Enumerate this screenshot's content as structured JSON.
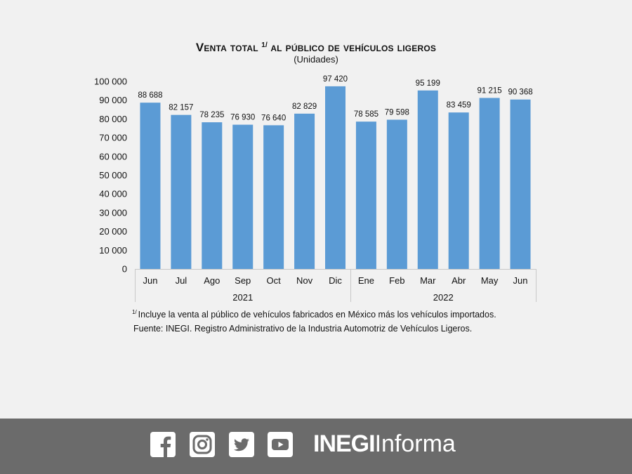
{
  "chart_data": {
    "type": "bar",
    "title_prefix": "Venta total",
    "title_sup": "1/",
    "title_suffix": "al público de vehículos ligeros",
    "subtitle": "(Unidades)",
    "categories": [
      "Jun",
      "Jul",
      "Ago",
      "Sep",
      "Oct",
      "Nov",
      "Dic",
      "Ene",
      "Feb",
      "Mar",
      "Abr",
      "May",
      "Jun"
    ],
    "values": [
      88688,
      82157,
      78235,
      76930,
      76640,
      82829,
      97420,
      78585,
      79598,
      95199,
      83459,
      91215,
      90368
    ],
    "value_labels": [
      "88 688",
      "82 157",
      "78 235",
      "76 930",
      "76 640",
      "82 829",
      "97 420",
      "78 585",
      "79 598",
      "95 199",
      "83 459",
      "91 215",
      "90 368"
    ],
    "year_groups": [
      {
        "label": "2021",
        "count": 7
      },
      {
        "label": "2022",
        "count": 6
      }
    ],
    "yticks": [
      "0",
      "10 000",
      "20 000",
      "30 000",
      "40 000",
      "50 000",
      "60 000",
      "70 000",
      "80 000",
      "90 000",
      "100 000"
    ],
    "ylim": [
      0,
      100000
    ],
    "grid": false,
    "bar_color": "#5b9bd5",
    "footnote_sup": "1/",
    "footnote": "Incluye la venta al público de vehículos fabricados en México más los vehículos importados.",
    "source": "Fuente: INEGI. Registro Administrativo de la Industria Automotriz de Vehículos Ligeros."
  },
  "footer": {
    "icons": [
      "facebook-icon",
      "instagram-icon",
      "twitter-icon",
      "youtube-icon"
    ],
    "brand_bold": "INEGI",
    "brand_light": "Informa",
    "background": "#6b6b6b"
  }
}
